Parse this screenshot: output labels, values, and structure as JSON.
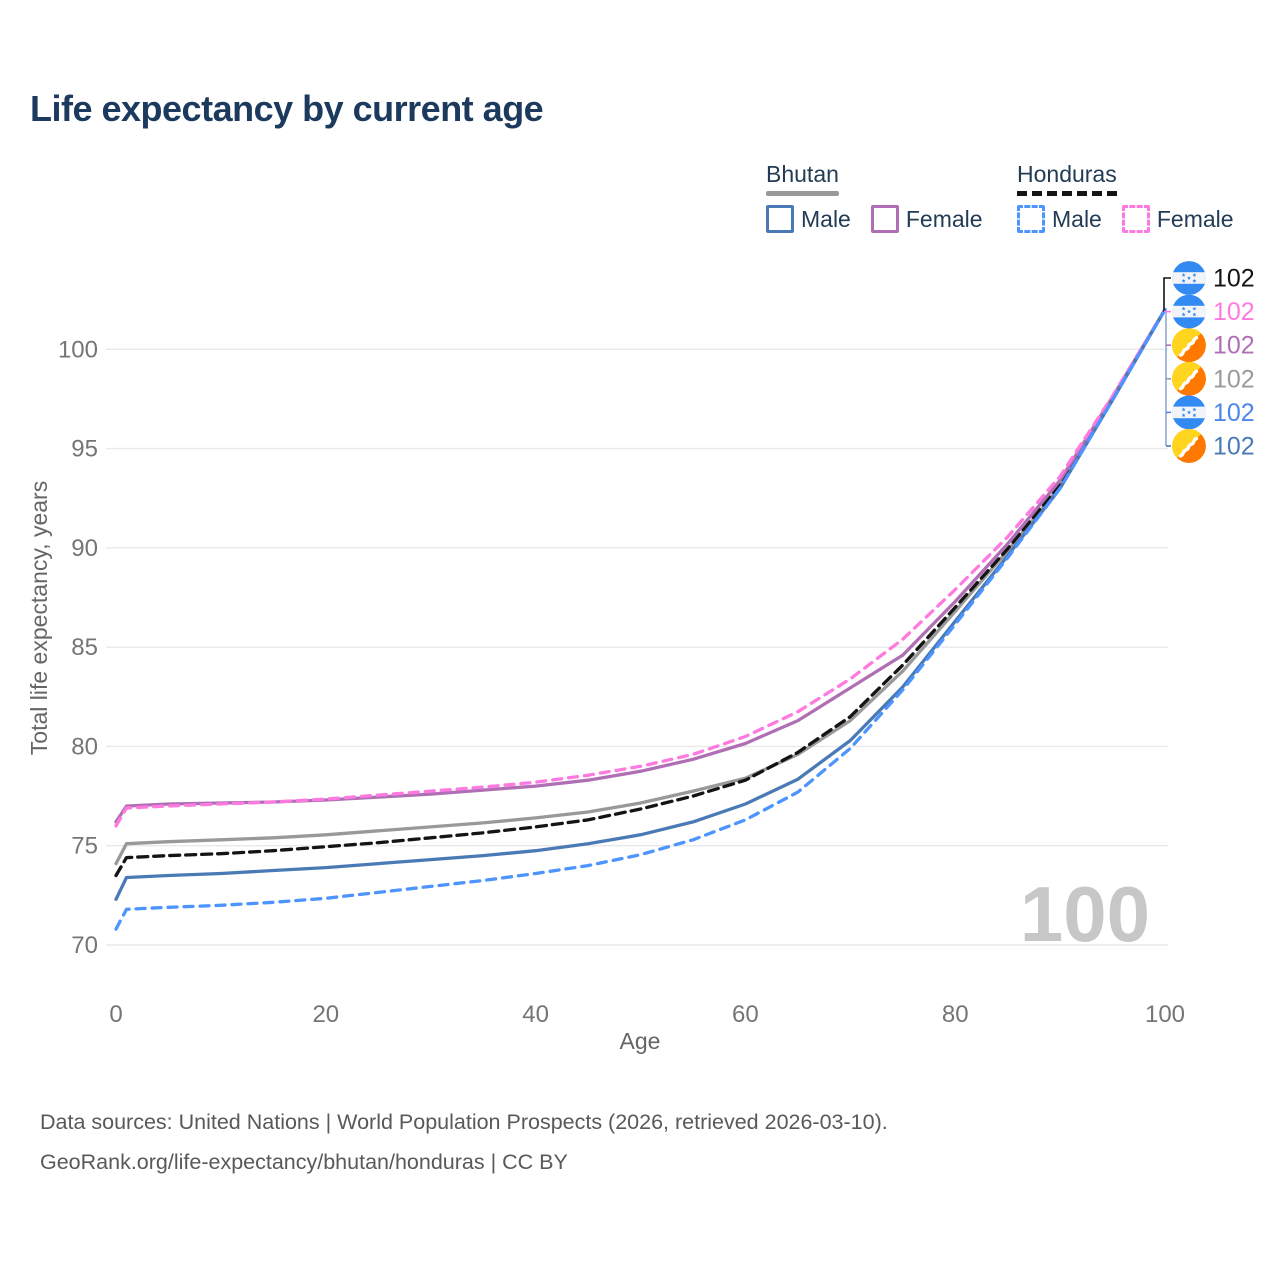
{
  "title": "Life expectancy by current age",
  "legend": {
    "groups": [
      {
        "country": "Bhutan",
        "line_style": "solid",
        "underline_color": "#999999",
        "items": [
          {
            "label": "Male",
            "color": "#4a7ab5",
            "dashed": false
          },
          {
            "label": "Female",
            "color": "#b06fb5",
            "dashed": false
          }
        ]
      },
      {
        "country": "Honduras",
        "line_style": "dashed",
        "underline_color": "#141414",
        "items": [
          {
            "label": "Male",
            "color": "#4d94ff",
            "dashed": true
          },
          {
            "label": "Female",
            "color": "#ff7ae0",
            "dashed": true
          }
        ]
      }
    ]
  },
  "colors": {
    "title": "#1c3a5e",
    "tick": "#757575",
    "axis_label": "#666666",
    "grid": "#e9e9e9",
    "watermark": "#c7c7c7",
    "footer": "#595959",
    "legend_text": "#223c55",
    "leader": "#90a8d8",
    "leader_black": "#141414",
    "flag_honduras_blue": "#338af3",
    "flag_bhutan_yellow": "#ffd520",
    "flag_bhutan_orange": "#ff7900"
  },
  "chart_data": {
    "type": "line",
    "title": "Life expectancy by current age",
    "xlabel": "Age",
    "ylabel": "Total life expectancy, years",
    "xlim": [
      0,
      100
    ],
    "ylim": [
      69.5,
      103
    ],
    "xticks": [
      0,
      20,
      40,
      60,
      80,
      100
    ],
    "yticks": [
      70,
      75,
      80,
      85,
      90,
      95,
      100
    ],
    "grid": "horizontal",
    "watermark": "100",
    "x": [
      0,
      1,
      5,
      10,
      15,
      20,
      25,
      30,
      35,
      40,
      45,
      50,
      55,
      60,
      65,
      70,
      75,
      80,
      85,
      90,
      95,
      100
    ],
    "series": [
      {
        "name": "Bhutan Total",
        "country": "bhutan",
        "sex": "total",
        "color": "#999999",
        "dash": null,
        "values": [
          74.1,
          75.1,
          75.2,
          75.3,
          75.4,
          75.55,
          75.75,
          75.95,
          76.15,
          76.4,
          76.7,
          77.15,
          77.75,
          78.4,
          79.6,
          81.3,
          83.8,
          86.8,
          89.85,
          93.1,
          97.5,
          102
        ]
      },
      {
        "name": "Honduras Total",
        "country": "honduras",
        "sex": "total",
        "color": "#141414",
        "dash": "10 6",
        "values": [
          73.5,
          74.4,
          74.5,
          74.6,
          74.75,
          74.95,
          75.15,
          75.4,
          75.65,
          75.95,
          76.3,
          76.85,
          77.5,
          78.3,
          79.7,
          81.5,
          84.1,
          87.0,
          89.95,
          93.2,
          97.55,
          102
        ]
      },
      {
        "name": "Bhutan Female",
        "country": "bhutan",
        "sex": "female",
        "color": "#b06fb5",
        "dash": null,
        "values": [
          76.2,
          77.0,
          77.1,
          77.15,
          77.2,
          77.3,
          77.45,
          77.6,
          77.8,
          78.0,
          78.3,
          78.75,
          79.35,
          80.15,
          81.3,
          82.95,
          84.6,
          87.3,
          90.2,
          93.4,
          97.6,
          102
        ]
      },
      {
        "name": "Honduras Female",
        "country": "honduras",
        "sex": "female",
        "color": "#ff7ae0",
        "dash": "9 7",
        "values": [
          76.0,
          76.9,
          77.0,
          77.1,
          77.2,
          77.35,
          77.55,
          77.75,
          77.95,
          78.2,
          78.55,
          79.0,
          79.6,
          80.5,
          81.75,
          83.4,
          85.4,
          87.9,
          90.55,
          93.6,
          97.65,
          102
        ]
      },
      {
        "name": "Bhutan Male",
        "country": "bhutan",
        "sex": "male",
        "color": "#4a7ab5",
        "dash": null,
        "values": [
          72.3,
          73.4,
          73.5,
          73.6,
          73.75,
          73.9,
          74.1,
          74.3,
          74.5,
          74.75,
          75.1,
          75.55,
          76.2,
          77.1,
          78.35,
          80.3,
          83.0,
          86.3,
          89.6,
          93.0,
          97.45,
          102
        ]
      },
      {
        "name": "Honduras Male",
        "country": "honduras",
        "sex": "male",
        "color": "#4d94ff",
        "dash": "9 7",
        "values": [
          70.8,
          71.8,
          71.9,
          72.0,
          72.15,
          72.35,
          72.65,
          72.95,
          73.25,
          73.6,
          74.0,
          74.55,
          75.3,
          76.3,
          77.7,
          79.9,
          82.85,
          86.15,
          89.5,
          93.0,
          97.45,
          102
        ]
      }
    ],
    "end_labels": [
      {
        "series": "Honduras Total",
        "flag": "honduras",
        "value": "102",
        "color": "#141414"
      },
      {
        "series": "Honduras Female",
        "flag": "honduras",
        "value": "102",
        "color": "#ff7ae0"
      },
      {
        "series": "Bhutan Female",
        "flag": "bhutan",
        "value": "102",
        "color": "#b06fb5"
      },
      {
        "series": "Bhutan Total",
        "flag": "bhutan",
        "value": "102",
        "color": "#9a9a9a"
      },
      {
        "series": "Honduras Male",
        "flag": "honduras",
        "value": "102",
        "color": "#4d86e8"
      },
      {
        "series": "Bhutan Male",
        "flag": "bhutan",
        "value": "102",
        "color": "#4a7ab5"
      }
    ]
  },
  "footer": {
    "line1": "Data sources: United Nations | World Population Prospects (2026, retrieved 2026-03-10).",
    "line2": "GeoRank.org/life-expectancy/bhutan/honduras | CC BY"
  }
}
